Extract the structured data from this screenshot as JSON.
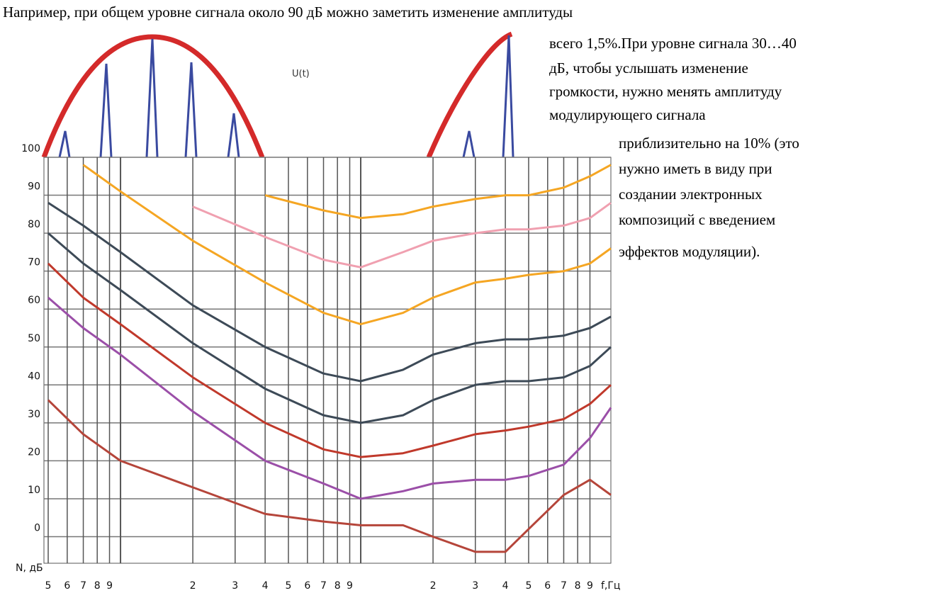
{
  "document": {
    "first_line": "Например, при общем уровне сигнала около 90 дБ можно заметить изменение амплитуды",
    "right_lines": [
      "всего 1,5%.При уровне сигнала 30…40",
      "дБ, чтобы услышать изменение",
      "громкости, нужно менять амплитуду",
      "модулирующего сигнала",
      "приблизительно на 10% (это",
      "нужно иметь в виду при",
      "создании электронных",
      "композиций с введением",
      "эффектов модуляции)."
    ]
  },
  "chart_data": {
    "type": "line",
    "annotation": "U(t)",
    "x_label": "f,Гц",
    "y_label": "N, дБ",
    "log_x": true,
    "grid": true,
    "x": [
      50,
      70,
      100,
      200,
      400,
      700,
      1000,
      1500,
      2000,
      3000,
      4000,
      5000,
      7000,
      9000,
      11000
    ],
    "xlim": [
      48,
      11000
    ],
    "xticks": [
      {
        "value": 50,
        "label": "5"
      },
      {
        "value": 60,
        "label": "6"
      },
      {
        "value": 70,
        "label": "7"
      },
      {
        "value": 80,
        "label": "8"
      },
      {
        "value": 90,
        "label": "9"
      },
      {
        "value": 200,
        "label": "2"
      },
      {
        "value": 300,
        "label": "3"
      },
      {
        "value": 400,
        "label": "4"
      },
      {
        "value": 500,
        "label": "5"
      },
      {
        "value": 600,
        "label": "6"
      },
      {
        "value": 700,
        "label": "7"
      },
      {
        "value": 800,
        "label": "8"
      },
      {
        "value": 900,
        "label": "9"
      },
      {
        "value": 2000,
        "label": "2"
      },
      {
        "value": 3000,
        "label": "3"
      },
      {
        "value": 4000,
        "label": "4"
      },
      {
        "value": 5000,
        "label": "5"
      },
      {
        "value": 6000,
        "label": "6"
      },
      {
        "value": 7000,
        "label": "7"
      },
      {
        "value": 8000,
        "label": "8"
      },
      {
        "value": 9000,
        "label": "9"
      }
    ],
    "xminor": [
      100,
      1000
    ],
    "ylim": [
      -7,
      100
    ],
    "yticks": [
      0,
      10,
      20,
      30,
      40,
      50,
      60,
      70,
      80,
      90,
      100
    ],
    "series": [
      {
        "color": "#b5453a",
        "values": [
          36,
          27,
          20,
          13,
          6,
          4,
          3,
          3,
          0,
          -4,
          -4,
          2,
          11,
          15,
          11
        ]
      },
      {
        "color": "#9b4fa8",
        "values": [
          63,
          55,
          48,
          33,
          20,
          14,
          10,
          12,
          14,
          15,
          15,
          16,
          19,
          26,
          34
        ]
      },
      {
        "color": "#c0392b",
        "values": [
          72,
          63,
          56,
          42,
          30,
          23,
          21,
          22,
          24,
          27,
          28,
          29,
          31,
          35,
          40
        ]
      },
      {
        "color": "#3d4a57",
        "values": [
          80,
          72,
          65,
          51,
          39,
          32,
          30,
          32,
          36,
          40,
          41,
          41,
          42,
          45,
          50
        ]
      },
      {
        "color": "#3d4a57",
        "values": [
          88,
          82,
          75,
          61,
          50,
          43,
          41,
          44,
          48,
          51,
          52,
          52,
          53,
          55,
          58
        ]
      },
      {
        "color": "#f5a623",
        "values": [
          null,
          98,
          91,
          78,
          67,
          59,
          56,
          59,
          63,
          67,
          68,
          69,
          70,
          72,
          76
        ]
      },
      {
        "color": "#f0a0b0",
        "values": [
          null,
          null,
          null,
          87,
          79,
          73,
          71,
          75,
          78,
          80,
          81,
          81,
          82,
          84,
          88
        ]
      },
      {
        "color": "#f5a623",
        "values": [
          null,
          null,
          null,
          null,
          90,
          86,
          84,
          85,
          87,
          89,
          90,
          90,
          92,
          95,
          98
        ]
      }
    ]
  }
}
